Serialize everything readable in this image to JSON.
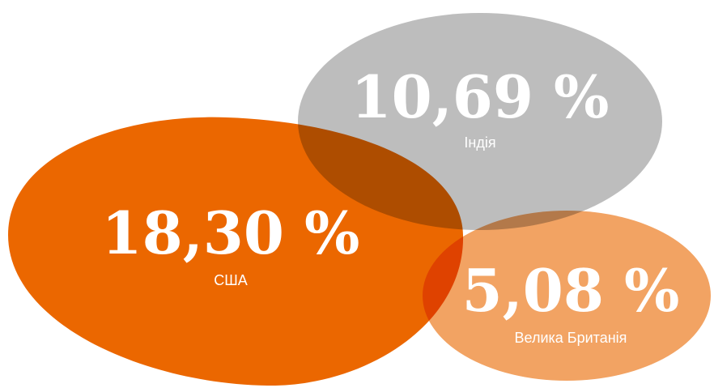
{
  "items": [
    {
      "value_label": "18,30 %",
      "name": "США"
    },
    {
      "value_label": "10,69 %",
      "name": "Індія"
    },
    {
      "value_label": "5,08 %",
      "name": "Велика Британія"
    }
  ]
}
